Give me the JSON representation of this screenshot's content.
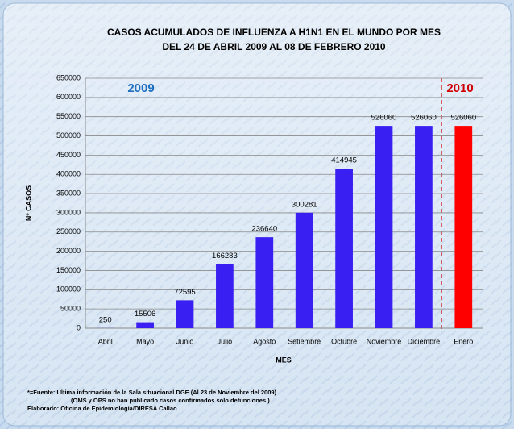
{
  "chart_data": {
    "type": "bar",
    "title": [
      "CASOS ACUMULADOS DE INFLUENZA A H1N1 EN EL MUNDO  POR MES",
      "DEL 24 DE ABRIL 2009 AL 08 DE FEBRERO 2010"
    ],
    "x_label": "MES",
    "y_label": "Nº CASOS",
    "annotations": [
      "2009",
      "2010"
    ],
    "footnotes": [
      "*=Fuente: Ultima información de la Sala situacional DGE (Al  23 de Noviembre del 2009)",
      "(OMS y OPS no han publicado casos confirmados solo defunciones )",
      "Elaborado: Oficina de Epidemiología/DIRESA Callao"
    ],
    "categories": [
      "Abril",
      "Mayo",
      "Junio",
      "Julio",
      "Agosto",
      "Setiembre",
      "Octubre",
      "Noviembre",
      "Diciembre",
      "Enero"
    ],
    "values": [
      250,
      15506,
      72595,
      166283,
      236640,
      300281,
      414945,
      526060,
      526060,
      526060
    ],
    "colors": [
      "#3a1ff2",
      "#3a1ff2",
      "#3a1ff2",
      "#3a1ff2",
      "#3a1ff2",
      "#3a1ff2",
      "#3a1ff2",
      "#3a1ff2",
      "#3a1ff2",
      "#ff0000"
    ],
    "annotation_colors": [
      "#1f6fc0",
      "#d00000"
    ],
    "ylim": [
      0,
      650000
    ],
    "yticks": [
      0,
      50000,
      100000,
      150000,
      200000,
      250000,
      300000,
      350000,
      400000,
      450000,
      500000,
      550000,
      600000,
      650000
    ],
    "grid": true
  }
}
